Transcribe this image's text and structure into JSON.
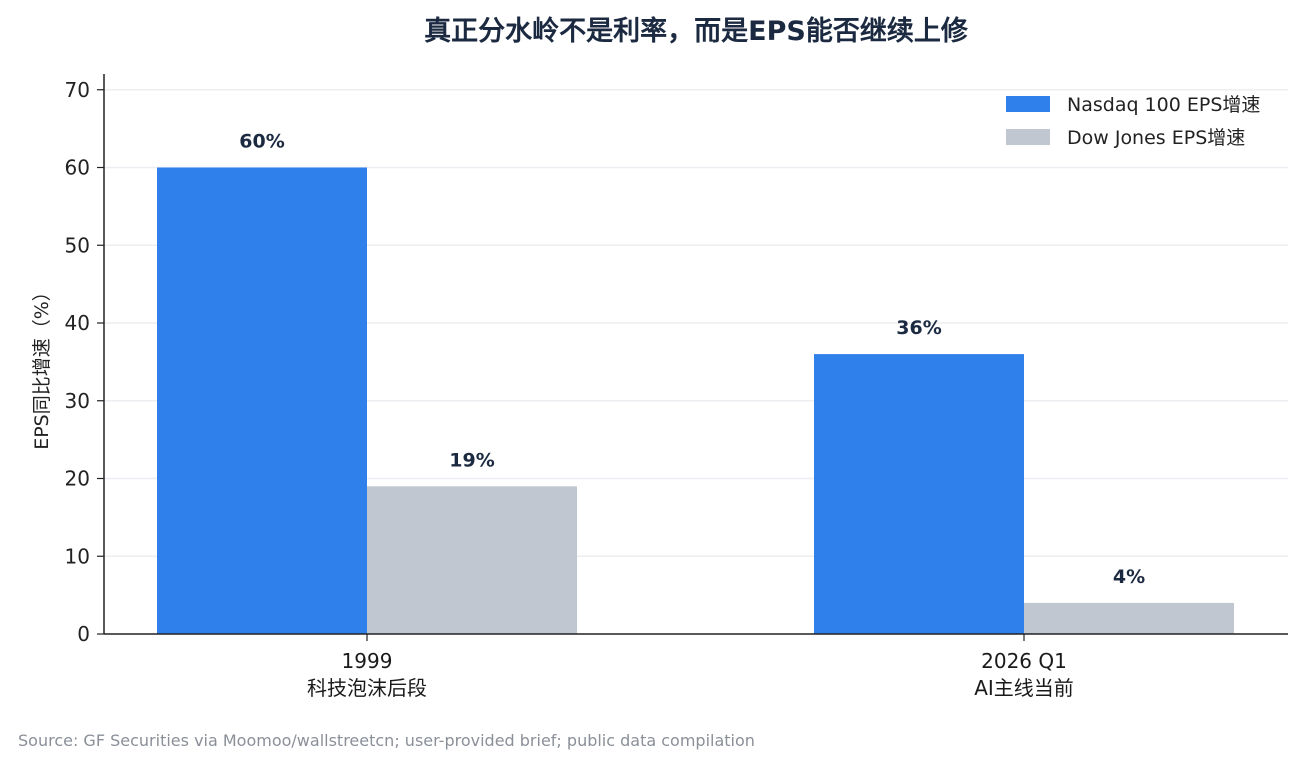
{
  "chart_data": {
    "type": "bar",
    "title": "真正分水岭不是利率，而是EPS能否继续上修",
    "xlabel": "",
    "ylabel": "EPS同比增速（%）",
    "ylim": [
      0,
      72
    ],
    "yticks": [
      0,
      10,
      20,
      30,
      40,
      50,
      60,
      70
    ],
    "categories": [
      [
        "1999",
        "科技泡沫后段"
      ],
      [
        "2026 Q1",
        "AI主线当前"
      ]
    ],
    "series": [
      {
        "name": "Nasdaq 100 EPS增速",
        "values": [
          60,
          36
        ],
        "labels": [
          "60%",
          "36%"
        ],
        "color": "#2f80ea"
      },
      {
        "name": "Dow Jones EPS增速",
        "values": [
          19,
          4
        ],
        "labels": [
          "19%",
          "4%"
        ],
        "color": "#c0c7d0"
      }
    ],
    "grid": "horizontal",
    "grid_color": "#eceef1",
    "legend_position": "top-right",
    "source": "Source: GF Securities via Moomoo/wallstreetcn; user-provided brief; public data compilation"
  }
}
